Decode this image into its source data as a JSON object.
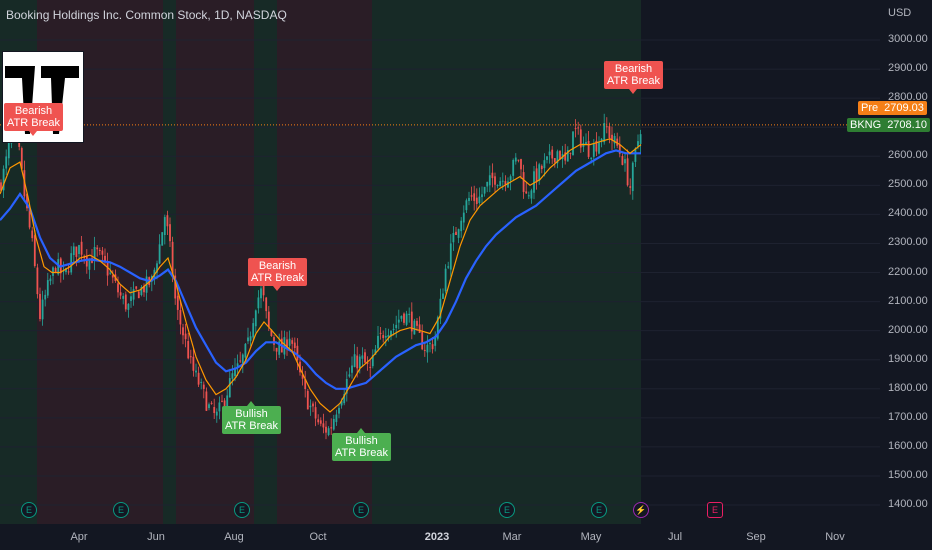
{
  "header": {
    "title": "Booking Holdings Inc. Common Stock, 1D, NASDAQ",
    "currency": "USD"
  },
  "price_tags": {
    "pre_label": "Pre",
    "pre_value": "2709.03",
    "last_label": "BKNG",
    "last_value": "2708.10"
  },
  "signals": [
    {
      "kind": "bear",
      "line1": "Bearish",
      "line2": "ATR Break"
    },
    {
      "kind": "bear",
      "line1": "Bearish",
      "line2": "ATR Break"
    },
    {
      "kind": "bull",
      "line1": "Bullish",
      "line2": "ATR Break"
    },
    {
      "kind": "bull",
      "line1": "Bullish",
      "line2": "ATR Break"
    },
    {
      "kind": "bear",
      "line1": "Bearish",
      "line2": "ATR Break"
    }
  ],
  "event_markers": [
    {
      "glyph": "E",
      "kind": "earnings"
    },
    {
      "glyph": "E",
      "kind": "earnings"
    },
    {
      "glyph": "E",
      "kind": "earnings"
    },
    {
      "glyph": "E",
      "kind": "earnings"
    },
    {
      "glyph": "E",
      "kind": "earnings"
    },
    {
      "glyph": "E",
      "kind": "earnings"
    },
    {
      "glyph": "⚡",
      "kind": "split"
    },
    {
      "glyph": "E",
      "kind": "future"
    }
  ],
  "colors": {
    "background": "#131722",
    "bull_candle": "#26a69a",
    "bear_candle": "#ef5350",
    "fast_ma": "#ff9800",
    "slow_ma": "#2962ff",
    "bear_zone": "#2a1d26",
    "bull_zone": "#172a26",
    "price_line": "#f57f17"
  },
  "chart_data": {
    "type": "candlestick",
    "title": "Booking Holdings Inc. Common Stock, 1D, NASDAQ",
    "ylabel": "USD",
    "y_ticks": [
      1400,
      1500,
      1600,
      1700,
      1800,
      1900,
      2000,
      2100,
      2200,
      2300,
      2400,
      2500,
      2600,
      2700,
      2800,
      2900,
      3000
    ],
    "x_ticks": [
      "Apr",
      "Jun",
      "Aug",
      "Oct",
      "2023",
      "Mar",
      "May",
      "Jul",
      "Sep",
      "Nov"
    ],
    "ylim": [
      1350,
      3060
    ],
    "last_price": 2708.1,
    "pre_price": 2709.03,
    "close_path": [
      [
        0,
        2500
      ],
      [
        5,
        2560
      ],
      [
        12,
        2700
      ],
      [
        18,
        2640
      ],
      [
        25,
        2450
      ],
      [
        32,
        2300
      ],
      [
        40,
        2050
      ],
      [
        48,
        2150
      ],
      [
        56,
        2230
      ],
      [
        64,
        2180
      ],
      [
        72,
        2260
      ],
      [
        80,
        2290
      ],
      [
        88,
        2240
      ],
      [
        96,
        2270
      ],
      [
        104,
        2230
      ],
      [
        112,
        2180
      ],
      [
        120,
        2120
      ],
      [
        128,
        2080
      ],
      [
        136,
        2130
      ],
      [
        144,
        2150
      ],
      [
        152,
        2170
      ],
      [
        160,
        2300
      ],
      [
        165,
        2400
      ],
      [
        170,
        2280
      ],
      [
        176,
        2080
      ],
      [
        184,
        1980
      ],
      [
        192,
        1870
      ],
      [
        200,
        1810
      ],
      [
        208,
        1740
      ],
      [
        216,
        1700
      ],
      [
        224,
        1760
      ],
      [
        232,
        1840
      ],
      [
        240,
        1880
      ],
      [
        248,
        1950
      ],
      [
        256,
        2100
      ],
      [
        262,
        2140
      ],
      [
        268,
        2010
      ],
      [
        274,
        1960
      ],
      [
        282,
        1930
      ],
      [
        290,
        1990
      ],
      [
        298,
        1870
      ],
      [
        306,
        1770
      ],
      [
        314,
        1710
      ],
      [
        322,
        1660
      ],
      [
        330,
        1660
      ],
      [
        338,
        1750
      ],
      [
        346,
        1820
      ],
      [
        354,
        1890
      ],
      [
        362,
        1900
      ],
      [
        370,
        1860
      ],
      [
        378,
        1960
      ],
      [
        386,
        2010
      ],
      [
        394,
        2010
      ],
      [
        402,
        2060
      ],
      [
        410,
        2040
      ],
      [
        418,
        1980
      ],
      [
        426,
        1940
      ],
      [
        434,
        1960
      ],
      [
        440,
        2080
      ],
      [
        446,
        2220
      ],
      [
        454,
        2320
      ],
      [
        462,
        2410
      ],
      [
        470,
        2460
      ],
      [
        478,
        2450
      ],
      [
        486,
        2490
      ],
      [
        494,
        2530
      ],
      [
        502,
        2520
      ],
      [
        510,
        2540
      ],
      [
        518,
        2600
      ],
      [
        526,
        2460
      ],
      [
        534,
        2520
      ],
      [
        542,
        2560
      ],
      [
        550,
        2590
      ],
      [
        558,
        2620
      ],
      [
        566,
        2570
      ],
      [
        574,
        2690
      ],
      [
        582,
        2650
      ],
      [
        590,
        2620
      ],
      [
        598,
        2650
      ],
      [
        606,
        2700
      ],
      [
        612,
        2660
      ],
      [
        618,
        2630
      ],
      [
        624,
        2580
      ],
      [
        630,
        2490
      ],
      [
        636,
        2620
      ],
      [
        641,
        2708
      ]
    ],
    "fast_ma_path": [
      [
        0,
        2470
      ],
      [
        10,
        2560
      ],
      [
        20,
        2580
      ],
      [
        28,
        2460
      ],
      [
        36,
        2320
      ],
      [
        44,
        2220
      ],
      [
        52,
        2200
      ],
      [
        60,
        2200
      ],
      [
        70,
        2220
      ],
      [
        80,
        2250
      ],
      [
        90,
        2260
      ],
      [
        100,
        2240
      ],
      [
        110,
        2210
      ],
      [
        120,
        2160
      ],
      [
        130,
        2130
      ],
      [
        140,
        2140
      ],
      [
        150,
        2170
      ],
      [
        160,
        2220
      ],
      [
        168,
        2250
      ],
      [
        176,
        2160
      ],
      [
        186,
        2030
      ],
      [
        196,
        1910
      ],
      [
        206,
        1830
      ],
      [
        216,
        1780
      ],
      [
        226,
        1800
      ],
      [
        236,
        1840
      ],
      [
        246,
        1900
      ],
      [
        256,
        1990
      ],
      [
        264,
        2030
      ],
      [
        272,
        2000
      ],
      [
        282,
        1960
      ],
      [
        292,
        1930
      ],
      [
        300,
        1870
      ],
      [
        310,
        1800
      ],
      [
        320,
        1750
      ],
      [
        330,
        1720
      ],
      [
        340,
        1750
      ],
      [
        350,
        1810
      ],
      [
        360,
        1870
      ],
      [
        370,
        1900
      ],
      [
        380,
        1940
      ],
      [
        390,
        1980
      ],
      [
        400,
        2000
      ],
      [
        410,
        2010
      ],
      [
        420,
        2000
      ],
      [
        430,
        1990
      ],
      [
        440,
        2050
      ],
      [
        450,
        2170
      ],
      [
        460,
        2290
      ],
      [
        470,
        2380
      ],
      [
        480,
        2430
      ],
      [
        490,
        2460
      ],
      [
        500,
        2490
      ],
      [
        510,
        2510
      ],
      [
        520,
        2530
      ],
      [
        530,
        2500
      ],
      [
        540,
        2520
      ],
      [
        550,
        2560
      ],
      [
        560,
        2590
      ],
      [
        570,
        2620
      ],
      [
        580,
        2640
      ],
      [
        590,
        2640
      ],
      [
        600,
        2650
      ],
      [
        610,
        2660
      ],
      [
        620,
        2640
      ],
      [
        630,
        2610
      ],
      [
        641,
        2640
      ]
    ],
    "slow_ma_path": [
      [
        0,
        2380
      ],
      [
        10,
        2420
      ],
      [
        20,
        2470
      ],
      [
        30,
        2420
      ],
      [
        40,
        2320
      ],
      [
        50,
        2250
      ],
      [
        60,
        2220
      ],
      [
        70,
        2230
      ],
      [
        80,
        2240
      ],
      [
        90,
        2245
      ],
      [
        100,
        2240
      ],
      [
        110,
        2235
      ],
      [
        120,
        2220
      ],
      [
        130,
        2200
      ],
      [
        140,
        2180
      ],
      [
        150,
        2170
      ],
      [
        160,
        2190
      ],
      [
        168,
        2210
      ],
      [
        176,
        2170
      ],
      [
        186,
        2090
      ],
      [
        196,
        2010
      ],
      [
        206,
        1950
      ],
      [
        216,
        1890
      ],
      [
        226,
        1860
      ],
      [
        236,
        1870
      ],
      [
        246,
        1890
      ],
      [
        256,
        1930
      ],
      [
        266,
        1960
      ],
      [
        276,
        1960
      ],
      [
        286,
        1940
      ],
      [
        296,
        1920
      ],
      [
        306,
        1890
      ],
      [
        316,
        1850
      ],
      [
        326,
        1820
      ],
      [
        336,
        1800
      ],
      [
        346,
        1800
      ],
      [
        356,
        1810
      ],
      [
        366,
        1820
      ],
      [
        376,
        1850
      ],
      [
        386,
        1880
      ],
      [
        396,
        1910
      ],
      [
        406,
        1930
      ],
      [
        416,
        1950
      ],
      [
        426,
        1960
      ],
      [
        436,
        1980
      ],
      [
        446,
        2030
      ],
      [
        456,
        2100
      ],
      [
        466,
        2180
      ],
      [
        476,
        2240
      ],
      [
        486,
        2290
      ],
      [
        496,
        2330
      ],
      [
        506,
        2360
      ],
      [
        516,
        2390
      ],
      [
        526,
        2410
      ],
      [
        536,
        2430
      ],
      [
        546,
        2460
      ],
      [
        556,
        2490
      ],
      [
        566,
        2520
      ],
      [
        576,
        2550
      ],
      [
        586,
        2570
      ],
      [
        596,
        2590
      ],
      [
        606,
        2610
      ],
      [
        616,
        2620
      ],
      [
        626,
        2610
      ],
      [
        641,
        2610
      ]
    ],
    "zones": [
      {
        "from": 0,
        "to": 37,
        "kind": "bull"
      },
      {
        "from": 37,
        "to": 163,
        "kind": "bear"
      },
      {
        "from": 163,
        "to": 176,
        "kind": "bull"
      },
      {
        "from": 176,
        "to": 254,
        "kind": "bear"
      },
      {
        "from": 254,
        "to": 277,
        "kind": "bull"
      },
      {
        "from": 277,
        "to": 372,
        "kind": "bear"
      },
      {
        "from": 372,
        "to": 641,
        "kind": "bull"
      }
    ]
  }
}
